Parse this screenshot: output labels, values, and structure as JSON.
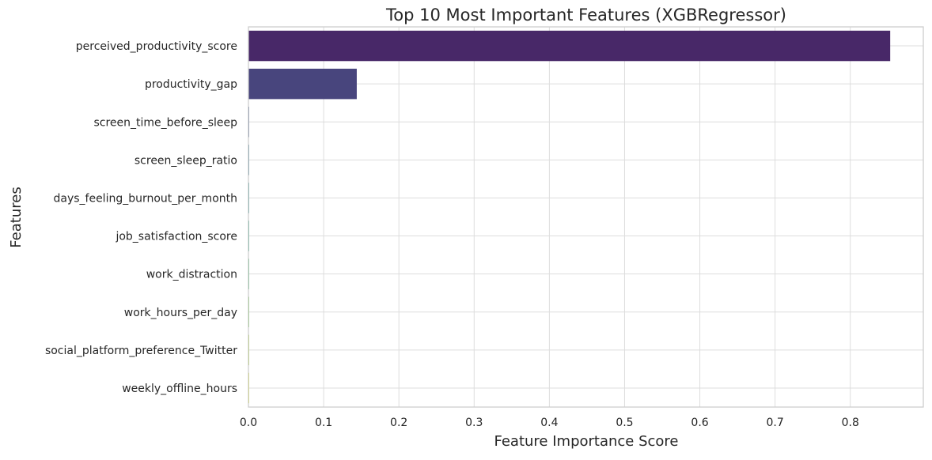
{
  "chart_data": {
    "type": "bar",
    "orientation": "horizontal",
    "title": "Top 10 Most Important Features (XGBRegressor)",
    "xlabel": "Feature Importance Score",
    "ylabel": "Features",
    "categories": [
      "perceived_productivity_score",
      "productivity_gap",
      "screen_time_before_sleep",
      "screen_sleep_ratio",
      "days_feeling_burnout_per_month",
      "job_satisfaction_score",
      "work_distraction",
      "work_hours_per_day",
      "social_platform_preference_Twitter",
      "weekly_offline_hours"
    ],
    "values": [
      0.853,
      0.144,
      0.001,
      0.001,
      0.001,
      0.001,
      0.001,
      0.001,
      0.001,
      0.001
    ],
    "bar_colors": [
      "#482868",
      "#48457d",
      "#3f5f8a",
      "#35778d",
      "#2c8d8a",
      "#28a27e",
      "#41b56a",
      "#70c64d",
      "#a8d334",
      "#dae12b"
    ],
    "xlim": [
      0,
      0.897
    ],
    "xticks": [
      0.0,
      0.1,
      0.2,
      0.3,
      0.4,
      0.5,
      0.6,
      0.7,
      0.8
    ],
    "xtick_labels": [
      "0.0",
      "0.1",
      "0.2",
      "0.3",
      "0.4",
      "0.5",
      "0.6",
      "0.7",
      "0.8"
    ],
    "grid": true,
    "legend": "none"
  }
}
